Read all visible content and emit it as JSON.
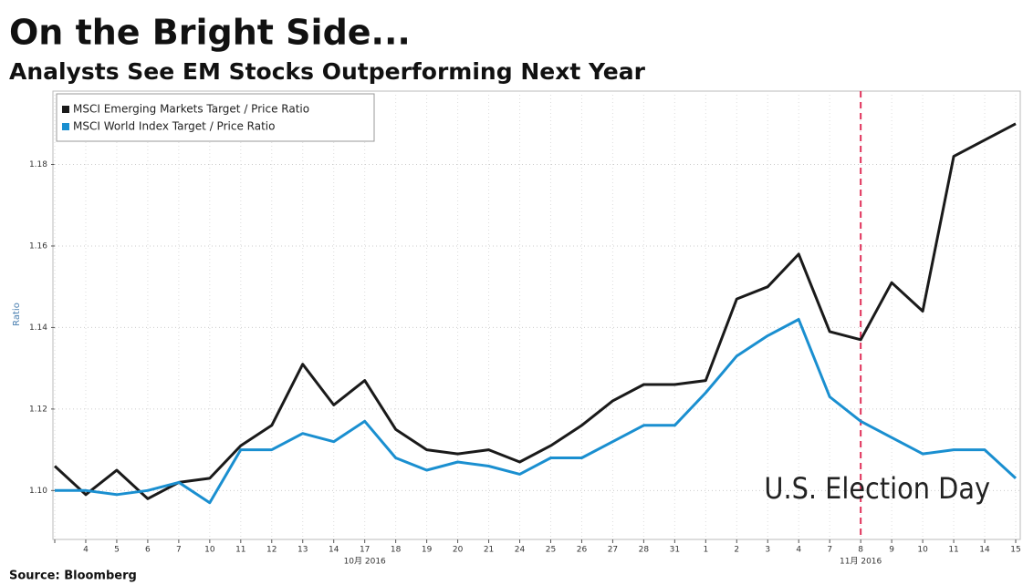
{
  "chart_data": {
    "type": "line",
    "title": "On the Bright Side...",
    "subtitle": "Analysts See EM Stocks Outperforming Next Year",
    "y_label": "Ratio",
    "source": "Source: Bloomberg",
    "categories": [
      null,
      "4",
      "5",
      "6",
      "7",
      "10",
      "11",
      "12",
      "13",
      "14",
      "17",
      "18",
      "19",
      "20",
      "21",
      "24",
      "25",
      "26",
      "27",
      "28",
      "31",
      "1",
      "2",
      "3",
      "4",
      "7",
      "8",
      "9",
      "10",
      "11",
      "14",
      "15"
    ],
    "month_labels": [
      {
        "label": "10月 2016",
        "at": 10
      },
      {
        "label": "11月 2016",
        "at": 26
      }
    ],
    "series": [
      {
        "name": "MSCI Emerging Markets Target / Price Ratio",
        "color": "#1a1a1a",
        "values": [
          1.106,
          1.099,
          1.105,
          1.098,
          1.102,
          1.103,
          1.111,
          1.116,
          1.131,
          1.121,
          1.127,
          1.115,
          1.11,
          1.109,
          1.11,
          1.107,
          1.111,
          1.116,
          1.122,
          1.126,
          1.126,
          1.127,
          1.147,
          1.15,
          1.158,
          1.139,
          1.137,
          1.151,
          1.144,
          1.182,
          1.186,
          1.19
        ]
      },
      {
        "name": "MSCI World Index Target / Price Ratio",
        "color": "#1a8fd0",
        "values": [
          1.1,
          1.1,
          1.099,
          1.1,
          1.102,
          1.097,
          1.11,
          1.11,
          1.114,
          1.112,
          1.117,
          1.108,
          1.105,
          1.107,
          1.106,
          1.104,
          1.108,
          1.108,
          1.112,
          1.116,
          1.116,
          1.124,
          1.133,
          1.138,
          1.142,
          1.123,
          1.117,
          1.113,
          1.109,
          1.11,
          1.11,
          1.103
        ]
      }
    ],
    "ylim": [
      1.088,
      1.198
    ],
    "yticks": [
      {
        "value": 1.1,
        "label": "1.10"
      },
      {
        "value": 1.12,
        "label": "1.12"
      },
      {
        "value": 1.14,
        "label": "1.14"
      },
      {
        "value": 1.16,
        "label": "1.16"
      },
      {
        "value": 1.18,
        "label": "1.18"
      }
    ],
    "grid": true,
    "legend": "upper left",
    "annotation": {
      "text": "U.S. Election Day",
      "at": 26,
      "color": "#e0325a"
    }
  }
}
